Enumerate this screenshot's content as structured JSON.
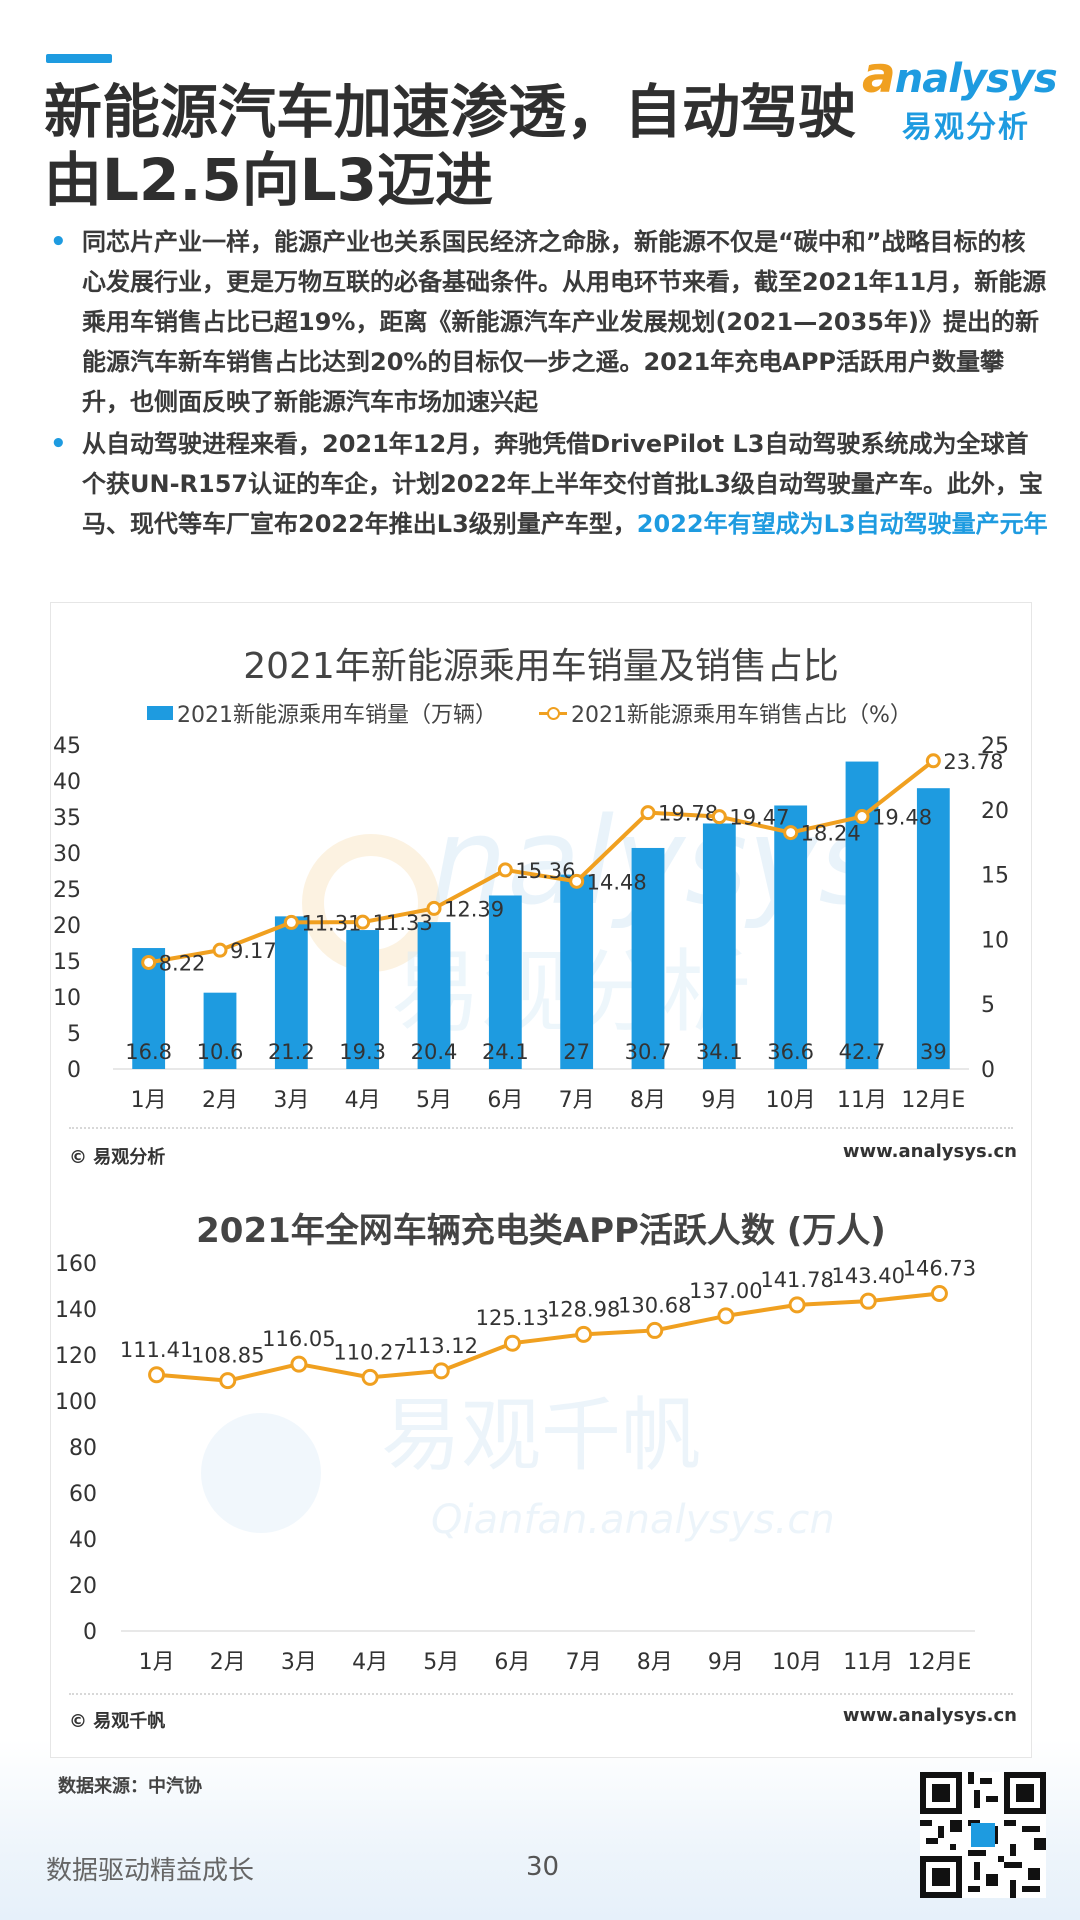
{
  "header": {
    "title_line1": "新能源汽车加速渗透，自动驾驶",
    "title_line2": "由L2.5向L3迈进",
    "logo_en_a": "a",
    "logo_en_rest": "nalysys",
    "logo_cn": "易观分析"
  },
  "bullets": [
    {
      "text": "同芯片产业一样，能源产业也关系国民经济之命脉，新能源不仅是“碳中和”战略目标的核心发展行业，更是万物互联的必备基础条件。从用电环节来看，截至2021年11月，新能源乘用车销售占比已超19%，距离《新能源汽车产业发展规划(2021—2035年)》提出的新能源汽车新车销售占比达到20%的目标仅一步之遥。2021年充电APP活跃用户数量攀升，也侧面反映了新能源汽车市场加速兴起",
      "highlight": ""
    },
    {
      "text": "从自动驾驶进程来看，2021年12月，奔驰凭借DrivePilot  L3自动驾驶系统成为全球首个获UN-R157认证的车企，计划2022年上半年交付首批L3级自动驾驶量产车。此外，宝马、现代等车厂宣布2022年推出L3级别量产车型，",
      "highlight": "2022年有望成为L3自动驾驶量产元年"
    }
  ],
  "chart_data": [
    {
      "type": "bar+line",
      "title": "2021年新能源乘用车销量及销售占比",
      "categories": [
        "1月",
        "2月",
        "3月",
        "4月",
        "5月",
        "6月",
        "7月",
        "8月",
        "9月",
        "10月",
        "11月",
        "12月E"
      ],
      "series": [
        {
          "name": "2021新能源乘用车销量（万辆）",
          "type": "bar",
          "axis": "left",
          "values": [
            16.8,
            10.6,
            21.2,
            19.3,
            20.4,
            24.1,
            27,
            30.7,
            34.1,
            36.6,
            42.7,
            39
          ]
        },
        {
          "name": "2021新能源乘用车销售占比（%）",
          "type": "line",
          "axis": "right",
          "values": [
            8.22,
            9.17,
            11.31,
            11.33,
            12.39,
            15.36,
            14.48,
            19.78,
            19.47,
            18.24,
            19.48,
            23.78
          ]
        }
      ],
      "ylim_left": [
        0,
        45
      ],
      "yticks_left": [
        0,
        5,
        10,
        15,
        20,
        25,
        30,
        35,
        40,
        45
      ],
      "ylim_right": [
        0,
        25
      ],
      "yticks_right": [
        0,
        5,
        10,
        15,
        20,
        25
      ],
      "color_bar": "#1e9be0",
      "color_line": "#f0a020",
      "footer_left": "© 易观分析",
      "footer_right": "www.analysys.cn"
    },
    {
      "type": "line",
      "title": "2021年全网车辆充电类APP活跃人数 (万人)",
      "categories": [
        "1月",
        "2月",
        "3月",
        "4月",
        "5月",
        "6月",
        "7月",
        "8月",
        "9月",
        "10月",
        "11月",
        "12月E"
      ],
      "series": [
        {
          "name": "活跃人数（万人）",
          "values": [
            111.41,
            108.85,
            116.05,
            110.27,
            113.12,
            125.13,
            128.98,
            130.68,
            137.0,
            141.78,
            143.4,
            146.73
          ]
        }
      ],
      "ylim": [
        0,
        160
      ],
      "yticks": [
        0,
        20,
        40,
        60,
        80,
        100,
        120,
        140,
        160
      ],
      "color_line": "#f0a020",
      "footer_left": "© 易观千帆",
      "footer_right": "www.analysys.cn"
    }
  ],
  "footer": {
    "source": "数据来源：中汽协",
    "tagline": "数据驱动精益成长",
    "page_number": "30"
  }
}
